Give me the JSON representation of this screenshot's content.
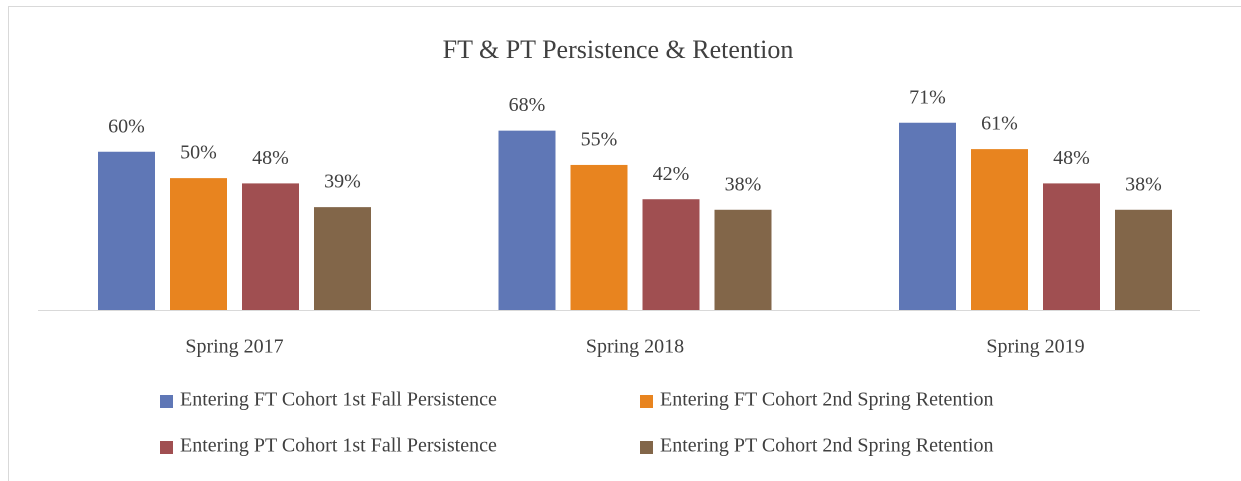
{
  "chart_data": {
    "type": "bar",
    "title": "FT & PT Persistence & Retention",
    "categories": [
      "Spring 2017",
      "Spring 2018",
      "Spring 2019"
    ],
    "series": [
      {
        "name": "Entering FT Cohort 1st Fall Persistence",
        "color": "#5f77b6",
        "values": [
          60,
          68,
          71
        ],
        "value_labels": [
          "60%",
          "68%",
          "71%"
        ]
      },
      {
        "name": "Entering FT Cohort 2nd Spring Retention",
        "color": "#e8841f",
        "values": [
          50,
          55,
          61
        ],
        "value_labels": [
          "50%",
          "55%",
          "61%"
        ]
      },
      {
        "name": "Entering PT Cohort 1st Fall Persistence",
        "color": "#a04f51",
        "values": [
          48,
          42,
          48
        ],
        "value_labels": [
          "48%",
          "42%",
          "48%"
        ]
      },
      {
        "name": "Entering PT Cohort 2nd Spring Retention",
        "color": "#826649",
        "values": [
          39,
          38,
          38
        ],
        "value_labels": [
          "39%",
          "38%",
          "38%"
        ]
      }
    ],
    "ylim": [
      0,
      80
    ]
  }
}
